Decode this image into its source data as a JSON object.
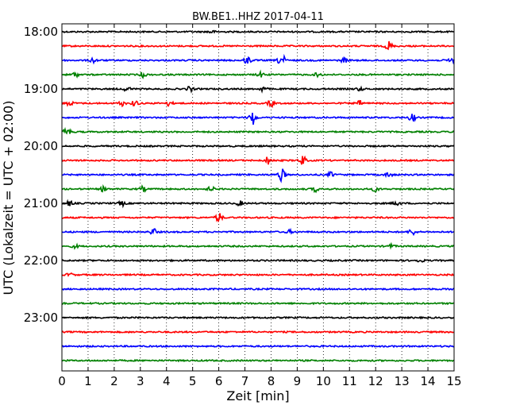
{
  "chart_data": {
    "type": "line",
    "title": "BW.BE1..HHZ 2017-04-11",
    "xlabel": "Zeit  [min]",
    "ylabel": "UTC (Lokalzeit = UTC + 02:00)",
    "xlim": [
      0,
      15
    ],
    "x_ticks": [
      "0",
      "1",
      "2",
      "3",
      "4",
      "5",
      "6",
      "7",
      "8",
      "9",
      "10",
      "11",
      "12",
      "13",
      "14",
      "15"
    ],
    "y_tick_labels": [
      "18:00",
      "19:00",
      "20:00",
      "21:00",
      "22:00",
      "23:00"
    ],
    "grid": "vertical dotted",
    "trace_colors": [
      "#000000",
      "#ff0000",
      "#0000ff",
      "#008000"
    ],
    "traces": [
      {
        "start": "18:00",
        "color": "#000000",
        "events": [
          {
            "x": 5.7,
            "amp": 2
          }
        ]
      },
      {
        "start": "18:15",
        "color": "#ff0000",
        "events": [
          {
            "x": 12.5,
            "amp": 6
          }
        ]
      },
      {
        "start": "18:30",
        "color": "#0000ff",
        "events": [
          {
            "x": 1.2,
            "amp": 3
          },
          {
            "x": 7.1,
            "amp": 5
          },
          {
            "x": 8.4,
            "amp": 9
          },
          {
            "x": 10.8,
            "amp": 3
          },
          {
            "x": 14.9,
            "amp": 3
          }
        ]
      },
      {
        "start": "18:45",
        "color": "#008000",
        "events": [
          {
            "x": 0.5,
            "amp": 3
          },
          {
            "x": 3.1,
            "amp": 3
          },
          {
            "x": 7.6,
            "amp": 3
          },
          {
            "x": 9.8,
            "amp": 3
          }
        ]
      },
      {
        "start": "19:00",
        "color": "#000000",
        "events": [
          {
            "x": 2.5,
            "amp": 3
          },
          {
            "x": 4.9,
            "amp": 3
          },
          {
            "x": 7.7,
            "amp": 3
          },
          {
            "x": 11.4,
            "amp": 2
          }
        ]
      },
      {
        "start": "19:15",
        "color": "#ff0000",
        "events": [
          {
            "x": 0.3,
            "amp": 3
          },
          {
            "x": 2.3,
            "amp": 3
          },
          {
            "x": 2.8,
            "amp": 4
          },
          {
            "x": 4.1,
            "amp": 3
          },
          {
            "x": 8.0,
            "amp": 4
          },
          {
            "x": 11.4,
            "amp": 3
          }
        ]
      },
      {
        "start": "19:30",
        "color": "#0000ff",
        "events": [
          {
            "x": 7.3,
            "amp": 9
          },
          {
            "x": 13.4,
            "amp": 5
          }
        ]
      },
      {
        "start": "19:45",
        "color": "#008000",
        "events": [
          {
            "x": 0.2,
            "amp": 6
          }
        ]
      },
      {
        "start": "20:00",
        "color": "#000000",
        "events": []
      },
      {
        "start": "20:15",
        "color": "#ff0000",
        "events": [
          {
            "x": 7.9,
            "amp": 5
          },
          {
            "x": 9.2,
            "amp": 6
          }
        ]
      },
      {
        "start": "20:30",
        "color": "#0000ff",
        "events": [
          {
            "x": 8.4,
            "amp": 8
          },
          {
            "x": 10.3,
            "amp": 3
          },
          {
            "x": 12.5,
            "amp": 3
          }
        ]
      },
      {
        "start": "20:45",
        "color": "#008000",
        "events": [
          {
            "x": 1.6,
            "amp": 3
          },
          {
            "x": 3.1,
            "amp": 3
          },
          {
            "x": 5.7,
            "amp": 3
          },
          {
            "x": 9.7,
            "amp": 3
          },
          {
            "x": 12.0,
            "amp": 3
          }
        ]
      },
      {
        "start": "21:00",
        "color": "#000000",
        "events": [
          {
            "x": 0.3,
            "amp": 3
          },
          {
            "x": 2.3,
            "amp": 3
          },
          {
            "x": 6.8,
            "amp": 3
          },
          {
            "x": 12.8,
            "amp": 3
          }
        ]
      },
      {
        "start": "21:15",
        "color": "#ff0000",
        "events": [
          {
            "x": 6.0,
            "amp": 6
          }
        ]
      },
      {
        "start": "21:30",
        "color": "#0000ff",
        "events": [
          {
            "x": 3.5,
            "amp": 4
          },
          {
            "x": 8.7,
            "amp": 2
          },
          {
            "x": 13.4,
            "amp": 4
          }
        ]
      },
      {
        "start": "21:45",
        "color": "#008000",
        "events": [
          {
            "x": 0.5,
            "amp": 2
          },
          {
            "x": 12.6,
            "amp": 2
          }
        ]
      },
      {
        "start": "22:00",
        "color": "#000000",
        "events": [
          {
            "x": 13.7,
            "amp": 2
          }
        ]
      },
      {
        "start": "22:15",
        "color": "#ff0000",
        "events": [
          {
            "x": 0.3,
            "amp": 2
          }
        ]
      },
      {
        "start": "22:30",
        "color": "#0000ff",
        "events": []
      },
      {
        "start": "22:45",
        "color": "#008000",
        "events": []
      },
      {
        "start": "23:00",
        "color": "#000000",
        "events": []
      },
      {
        "start": "23:15",
        "color": "#ff0000",
        "events": []
      },
      {
        "start": "23:30",
        "color": "#0000ff",
        "events": []
      },
      {
        "start": "23:45",
        "color": "#008000",
        "events": []
      }
    ]
  }
}
